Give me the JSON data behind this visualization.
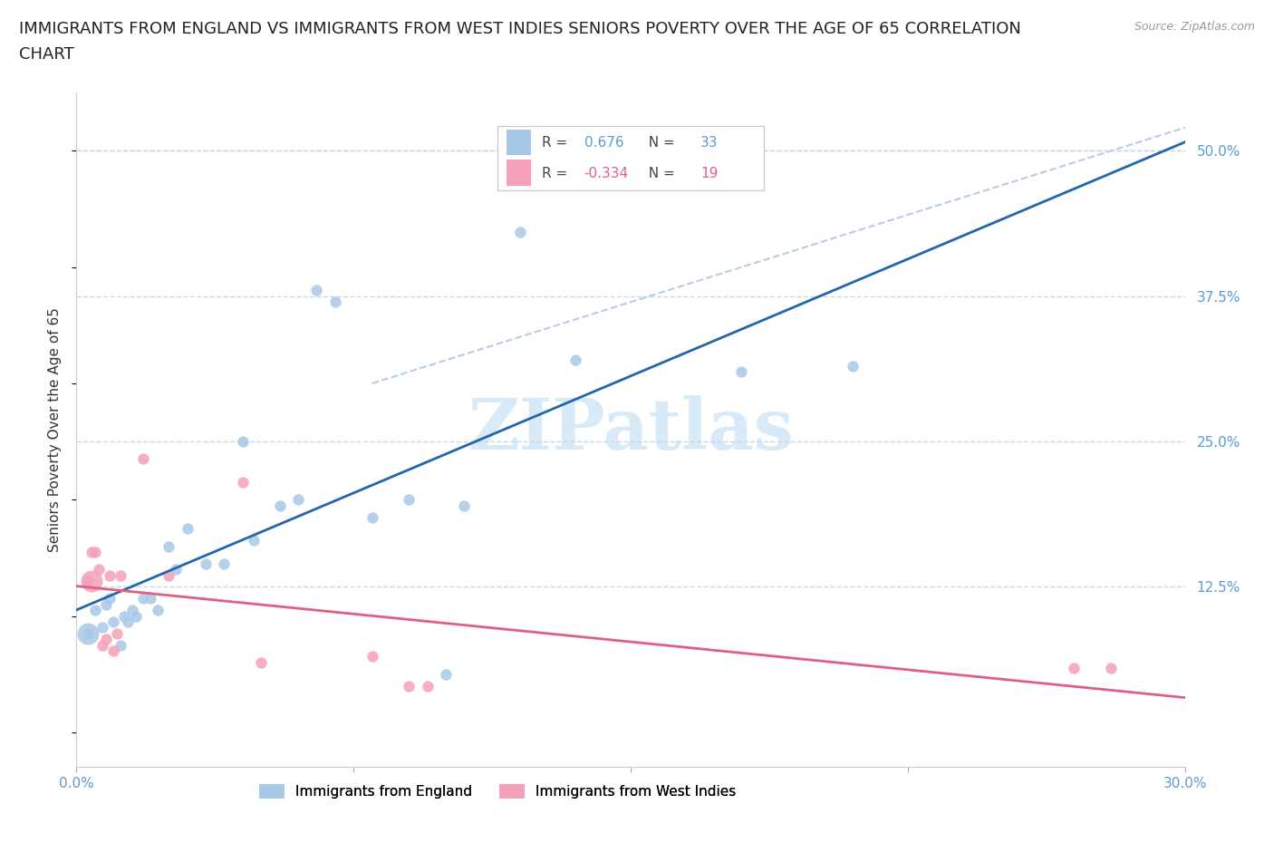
{
  "title_line1": "IMMIGRANTS FROM ENGLAND VS IMMIGRANTS FROM WEST INDIES SENIORS POVERTY OVER THE AGE OF 65 CORRELATION",
  "title_line2": "CHART",
  "source": "Source: ZipAtlas.com",
  "ylabel": "Seniors Poverty Over the Age of 65",
  "xmin": 0.0,
  "xmax": 30.0,
  "ymin": -3.0,
  "ymax": 55.0,
  "yticks": [
    0.0,
    12.5,
    25.0,
    37.5,
    50.0
  ],
  "ytick_labels": [
    "",
    "12.5%",
    "25.0%",
    "37.5%",
    "50.0%"
  ],
  "xticks": [
    0.0,
    7.5,
    15.0,
    22.5,
    30.0
  ],
  "xtick_labels": [
    "0.0%",
    "",
    "",
    "",
    "30.0%"
  ],
  "england_R": "0.676",
  "england_N": "33",
  "westindies_R": "-0.334",
  "westindies_N": "19",
  "england_color": "#a8c8e8",
  "westindies_color": "#f4a0b8",
  "england_line_color": "#2166ac",
  "westindies_line_color": "#e06080",
  "dashed_line_color": "#b8cce4",
  "watermark_color": "#d8eaf8",
  "england_x": [
    0.3,
    0.5,
    0.7,
    0.8,
    0.9,
    1.0,
    1.2,
    1.3,
    1.4,
    1.5,
    1.6,
    1.8,
    2.0,
    2.2,
    2.5,
    2.7,
    3.0,
    3.5,
    4.0,
    4.5,
    4.8,
    5.5,
    6.0,
    6.5,
    7.0,
    8.0,
    9.0,
    10.0,
    10.5,
    12.0,
    13.5,
    18.0,
    21.0
  ],
  "england_y": [
    8.5,
    10.5,
    9.0,
    11.0,
    11.5,
    9.5,
    7.5,
    10.0,
    9.5,
    10.5,
    10.0,
    11.5,
    11.5,
    10.5,
    16.0,
    14.0,
    17.5,
    14.5,
    14.5,
    25.0,
    16.5,
    19.5,
    20.0,
    38.0,
    37.0,
    18.5,
    20.0,
    5.0,
    19.5,
    43.0,
    32.0,
    31.0,
    31.5
  ],
  "westindies_x": [
    0.3,
    0.4,
    0.5,
    0.6,
    0.7,
    0.8,
    0.9,
    1.0,
    1.1,
    1.2,
    1.8,
    2.5,
    4.5,
    5.0,
    8.0,
    9.0,
    9.5,
    27.0,
    28.0
  ],
  "westindies_y": [
    13.0,
    15.5,
    15.5,
    14.0,
    7.5,
    8.0,
    13.5,
    7.0,
    8.5,
    13.5,
    23.5,
    13.5,
    21.5,
    6.0,
    6.5,
    4.0,
    4.0,
    5.5,
    5.5
  ],
  "england_size_base": 80,
  "westindies_size_base": 80,
  "background_color": "#ffffff",
  "axis_color": "#5b9bd5",
  "grid_color": "#c8d8e8",
  "title_fontsize": 13,
  "label_fontsize": 11,
  "tick_fontsize": 11,
  "legend_fontsize": 11,
  "watermark_text": "ZIPatlas",
  "dashed_x0": 8.0,
  "dashed_y0": 30.0,
  "dashed_x1": 30.0,
  "dashed_y1": 52.0
}
